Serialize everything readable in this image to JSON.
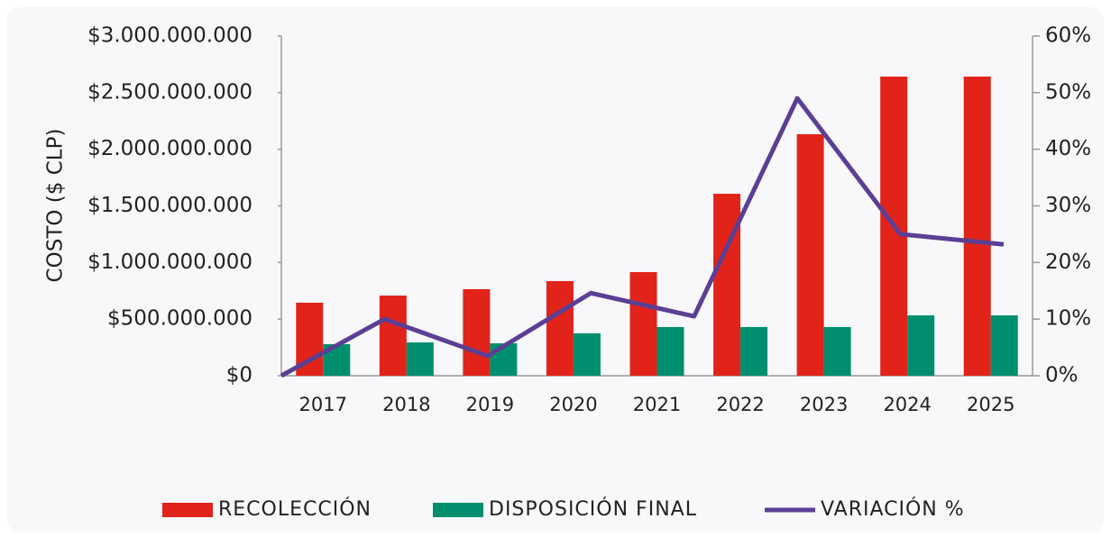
{
  "chart_data": {
    "type": "bar-line",
    "y_axis_label": "COSTO ($ CLP)",
    "categories": [
      "2017",
      "2018",
      "2019",
      "2020",
      "2021",
      "2022",
      "2023",
      "2024",
      "2025"
    ],
    "series": [
      {
        "name": "RECOLECCIÓN",
        "type": "bar",
        "color": "#e2231a",
        "values": [
          645000000,
          708000000,
          764000000,
          836000000,
          915000000,
          1607000000,
          2133000000,
          2642000000,
          2642000000
        ]
      },
      {
        "name": "DISPOSICIÓN FINAL",
        "type": "bar",
        "color": "#008f6e",
        "values": [
          279000000,
          294000000,
          286000000,
          374000000,
          430000000,
          430000000,
          430000000,
          533000000,
          533000000
        ]
      },
      {
        "name": "VARIACIÓN %",
        "type": "line",
        "axis": "y2",
        "color": "#5b3f94",
        "values": [
          0,
          10.0,
          3.5,
          14.6,
          10.5,
          49.0,
          25.0,
          23.2,
          null
        ]
      }
    ],
    "ylim": [
      0,
      3000000000
    ],
    "yticks": [
      {
        "value": 0,
        "label": "$0"
      },
      {
        "value": 500000000,
        "label": "$500.000.000"
      },
      {
        "value": 1000000000,
        "label": "$1.000.000.000"
      },
      {
        "value": 1500000000,
        "label": "$1.500.000.000"
      },
      {
        "value": 2000000000,
        "label": "$2.000.000.000"
      },
      {
        "value": 2500000000,
        "label": "$2.500.000.000"
      },
      {
        "value": 3000000000,
        "label": "$3.000.000.000"
      }
    ],
    "y2lim": [
      0,
      60
    ],
    "y2ticks": [
      {
        "value": 0,
        "label": "0%"
      },
      {
        "value": 10,
        "label": "10%"
      },
      {
        "value": 20,
        "label": "20%"
      },
      {
        "value": 30,
        "label": "30%"
      },
      {
        "value": 40,
        "label": "40%"
      },
      {
        "value": 50,
        "label": "50%"
      },
      {
        "value": 60,
        "label": "60%"
      }
    ],
    "legend": "bottom"
  }
}
